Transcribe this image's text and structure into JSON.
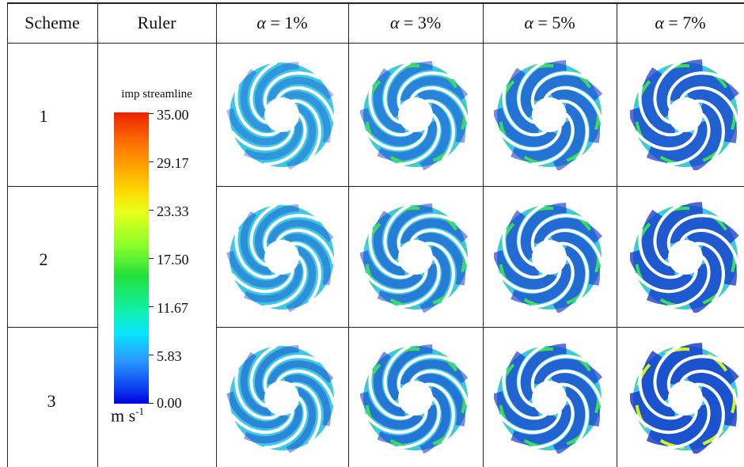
{
  "headers": {
    "scheme": "Scheme",
    "ruler": "Ruler",
    "alpha_symbol": "α",
    "alpha_cols": [
      "= 1%",
      "= 3%",
      "= 5%",
      "= 7%"
    ]
  },
  "schemes": [
    "1",
    "2",
    "3"
  ],
  "ruler": {
    "title": "imp streamline",
    "ticks": [
      "35.00",
      "29.17",
      "23.33",
      "17.50",
      "11.67",
      "5.83",
      "0.00"
    ],
    "unit_base": "m s",
    "unit_exp": "-1"
  },
  "colors": {
    "impeller_background": "#3ec8e6",
    "streamline_dark": "#1436c8",
    "blade": "#ffffff"
  }
}
